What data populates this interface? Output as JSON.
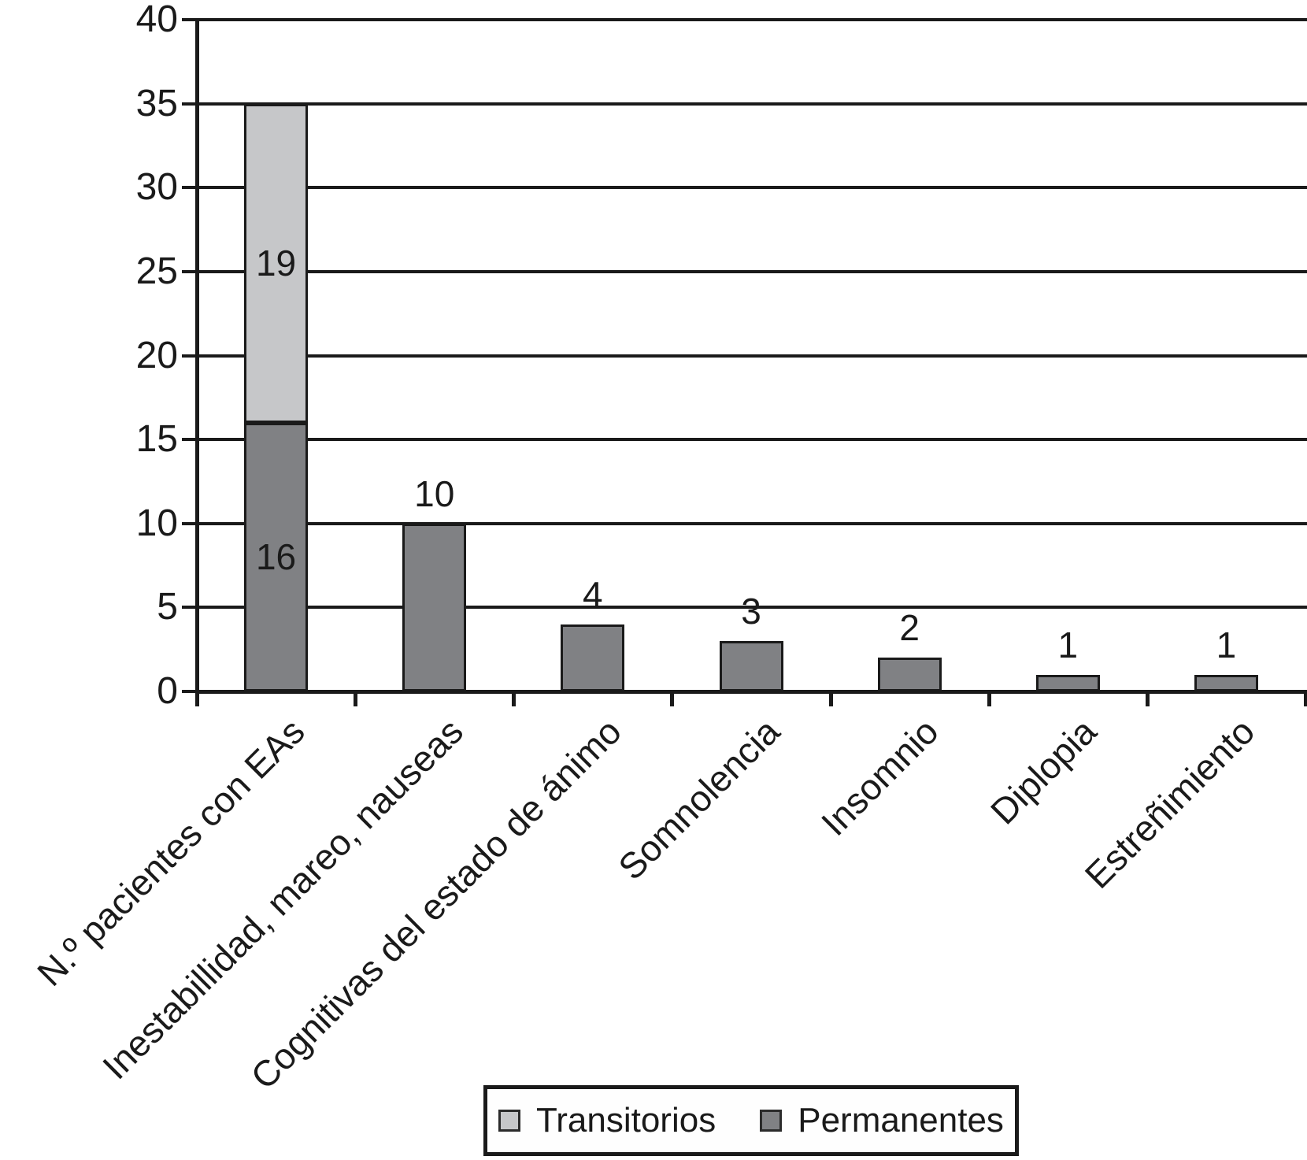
{
  "chart_data": {
    "type": "bar",
    "stacked": true,
    "title": "",
    "xlabel": "",
    "ylabel": "",
    "ylim": [
      0,
      40
    ],
    "yticks": [
      0,
      5,
      10,
      15,
      20,
      25,
      30,
      35,
      40
    ],
    "grid": "horizontal",
    "legend_position": "bottom-center",
    "data_labels": true,
    "categories": [
      "N.º pacientes con EAs",
      "Inestabillidad, mareo, nauseas",
      "Cognitivas del estado de ánimo",
      "Somnolencia",
      "Insomnio",
      "Diplopia",
      "Estreñimiento"
    ],
    "series": [
      {
        "name": "Permanentes",
        "color": "#808184",
        "values": [
          16,
          10,
          4,
          3,
          2,
          1,
          1
        ]
      },
      {
        "name": "Transitorios",
        "color": "#c6c7c9",
        "values": [
          19,
          0,
          0,
          0,
          0,
          0,
          0
        ]
      }
    ],
    "colors": {
      "axis": "#1a1a1a",
      "grid": "#1a1a1a",
      "bar_border": "#1a1a1a",
      "background": "#ffffff"
    }
  }
}
